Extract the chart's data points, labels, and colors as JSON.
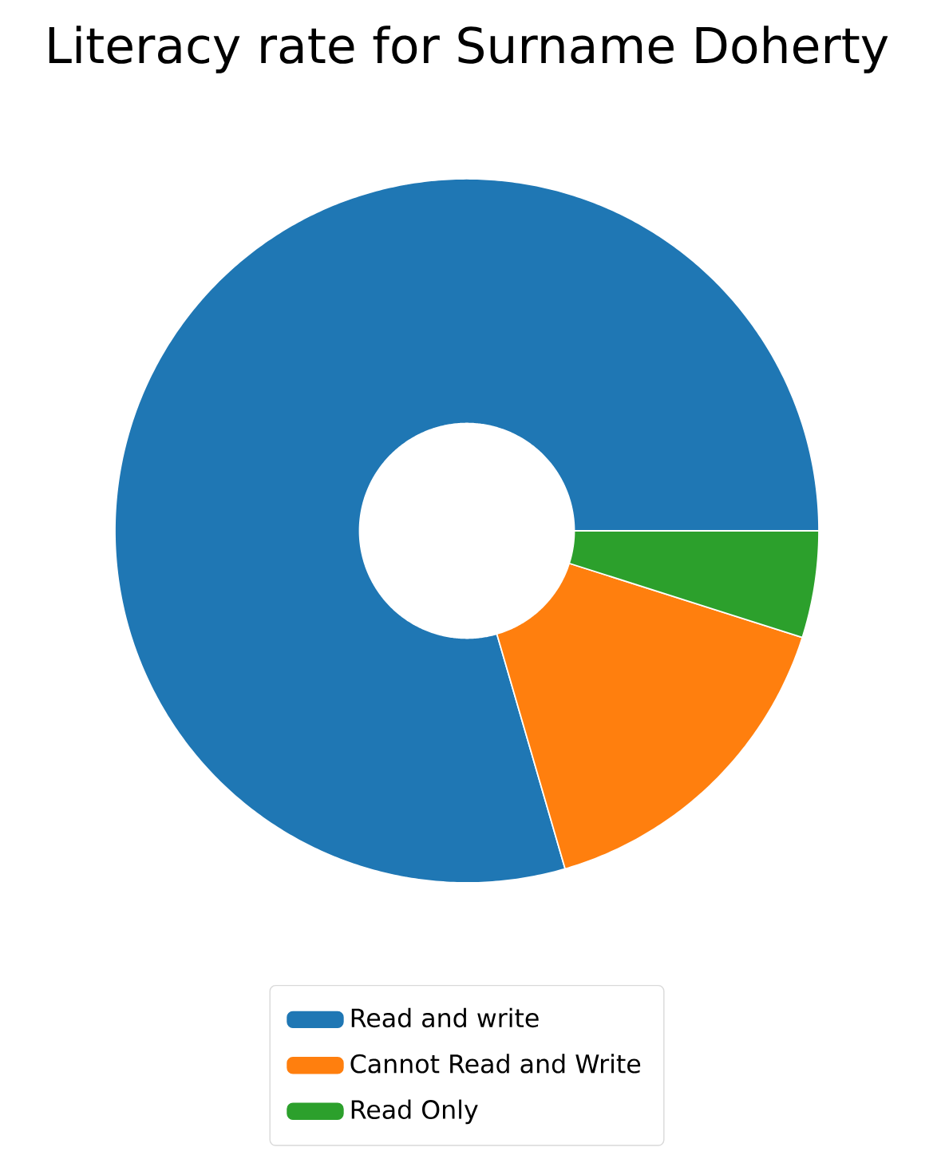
{
  "chart_data": {
    "type": "donut",
    "title": "Literacy rate for Surname Doherty",
    "categories": [
      "Read and write",
      "Cannot Read and Write",
      "Read Only"
    ],
    "values": [
      79.5,
      15.6,
      4.9
    ],
    "colors": [
      "#1f77b4",
      "#ff7f0e",
      "#2ca02c"
    ],
    "legend": "bottom"
  }
}
